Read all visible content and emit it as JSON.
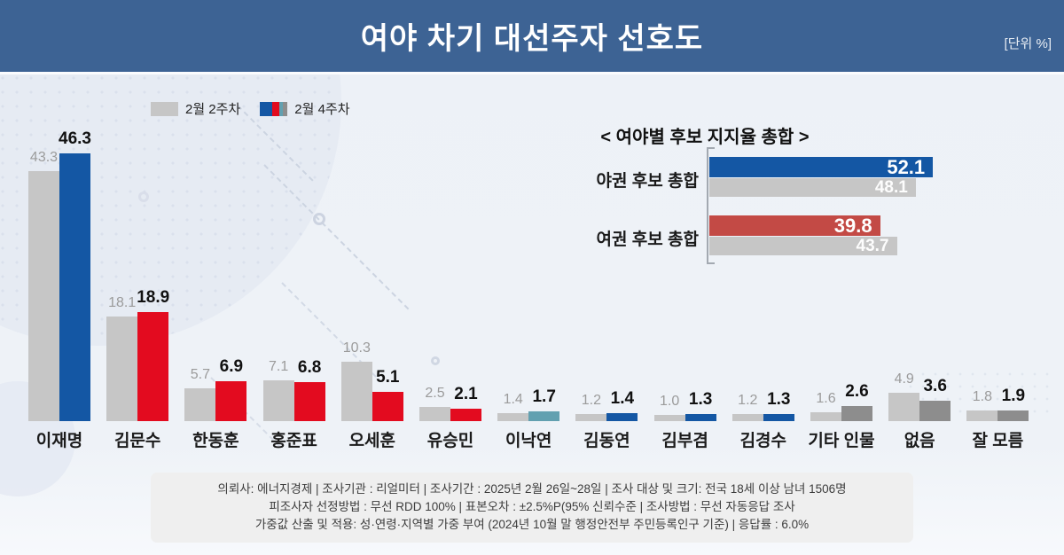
{
  "header": {
    "title": "여야 차기 대선주자 선호도",
    "unit_label": "[단위 %]"
  },
  "legend": {
    "week2_label": "2월 2주차",
    "week4_label": "2월 4주차"
  },
  "palette": {
    "header_bg": "#3d6394",
    "blue": "#1457a4",
    "red": "#e30b1f",
    "teal": "#62a0b0",
    "darkgray": "#8d8d8d",
    "prev_gray": "#c6c6c6",
    "inset_red": "#c34a45",
    "value_gray": "#9b9b9b",
    "text_dark": "#1b1b1b"
  },
  "chart_data": [
    {
      "type": "bar",
      "title": "여야 차기 대선주자 선호도",
      "unit": "%",
      "categories": [
        "이재명",
        "김문수",
        "한동훈",
        "홍준표",
        "오세훈",
        "유승민",
        "이낙연",
        "김동연",
        "김부겸",
        "김경수",
        "기타 인물",
        "없음",
        "잘 모름"
      ],
      "series": [
        {
          "name": "2월 2주차",
          "values": [
            43.3,
            18.1,
            5.7,
            7.1,
            10.3,
            2.5,
            1.4,
            1.2,
            1.0,
            1.2,
            1.6,
            4.9,
            1.8
          ]
        },
        {
          "name": "2월 4주차",
          "values": [
            46.3,
            18.9,
            6.9,
            6.8,
            5.1,
            2.1,
            1.7,
            1.4,
            1.3,
            1.3,
            2.6,
            3.6,
            1.9
          ]
        }
      ],
      "current_colors": [
        "blue",
        "red",
        "red",
        "red",
        "red",
        "red",
        "teal",
        "blue",
        "blue",
        "blue",
        "darkgray",
        "darkgray",
        "darkgray"
      ],
      "ylim": [
        0,
        50
      ],
      "grid": false,
      "value_labels": true
    },
    {
      "type": "bar",
      "orientation": "horizontal",
      "title": "< 여야별 후보 지지율 총합 >",
      "categories": [
        "야권 후보 총합",
        "여권 후보 총합"
      ],
      "series": [
        {
          "name": "2월 4주차",
          "values": [
            52.1,
            39.8
          ]
        },
        {
          "name": "2월 2주차",
          "values": [
            48.1,
            43.7
          ]
        }
      ],
      "colors": [
        "blue",
        "inset_red"
      ],
      "xlim": [
        0,
        60
      ],
      "value_labels": true
    }
  ],
  "footer": {
    "lines": [
      "의뢰사: 에너지경제 | 조사기관 : 리얼미터  |  조사기간 : 2025년 2월 26일~28일 | 조사 대상 및 크기: 전국 18세 이상 남녀 1506명",
      "피조사자 선정방법 : 무선 RDD 100% | 표본오차 : ±2.5%P(95% 신뢰수준 | 조사방법 : 무선 자동응답 조사",
      "가중값 산출 및 적용: 성·연령·지역별 가중 부여 (2024년 10월 말 행정안전부 주민등록인구 기준) | 응답률 : 6.0%"
    ]
  }
}
